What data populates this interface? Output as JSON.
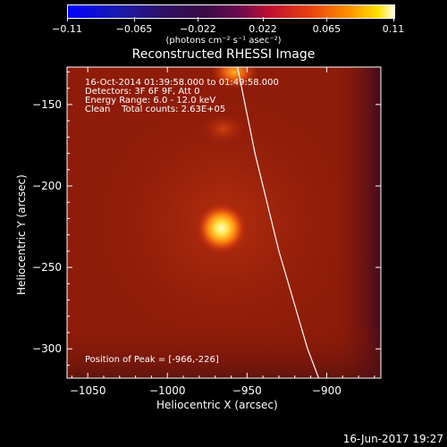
{
  "chart_data": {
    "type": "heatmap",
    "title": "Reconstructed RHESSI Image",
    "xlabel": "Heliocentric X (arcsec)",
    "ylabel": "Heliocentric Y (arcsec)",
    "xlim": [
      -1063,
      -866
    ],
    "ylim": [
      -318,
      -127
    ],
    "x_ticks": [
      -1050,
      -1000,
      -950,
      -900
    ],
    "y_ticks": [
      -150,
      -200,
      -250,
      -300
    ],
    "colorbar": {
      "ticks": [
        -0.11,
        -0.065,
        -0.022,
        0.022,
        0.065,
        0.11
      ],
      "tick_labels": [
        "-0.11",
        "-0.065",
        "-0.022",
        "0.022",
        "0.065",
        "0.11"
      ],
      "units": "(photons cm⁻² s⁻¹ asec⁻²)",
      "range": [
        -0.11,
        0.11
      ]
    },
    "sources": [
      {
        "x": -966,
        "y": -226,
        "value": 0.11,
        "role": "peak"
      },
      {
        "x": -958,
        "y": -130,
        "value": 0.085
      },
      {
        "x": -965,
        "y": -165,
        "value": 0.045
      }
    ],
    "limb_curve": [
      [
        -956,
        -127
      ],
      [
        -945,
        -180
      ],
      [
        -930,
        -240
      ],
      [
        -912,
        -300
      ],
      [
        -905,
        -318
      ]
    ],
    "info_lines": [
      "16-Oct-2014 01:39:58.000 to 01:49:58.000",
      "Detectors: 3F 6F 9F, Att 0",
      "Energy Range: 6.0 - 12.0 keV",
      "Clean    Total counts: 2.63E+05"
    ],
    "peak_text": "Position of Peak = [-966,-226]"
  },
  "date_stamp": "16-Jun-2017 19:27",
  "colors": {
    "background": "#000000",
    "image_base": "#8a1a08",
    "axes": "#ffffff"
  }
}
